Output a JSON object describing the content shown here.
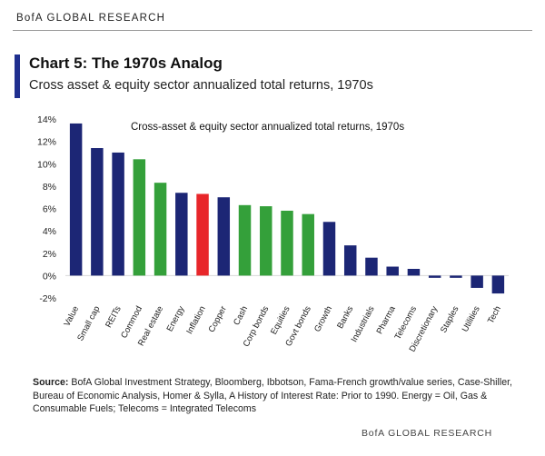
{
  "header": {
    "brand": "BofA GLOBAL RESEARCH"
  },
  "title": "Chart 5: The 1970s Analog",
  "subtitle": "Cross asset & equity sector annualized total returns, 1970s",
  "colors": {
    "navy": "#1c2675",
    "green": "#34a03a",
    "red": "#e8262a",
    "title_bar": "#1f2f8f"
  },
  "chart_data": {
    "type": "bar",
    "title": "Cross-asset & equity sector annualized total returns, 1970s",
    "xlabel": "",
    "ylabel": "",
    "ylim": [
      -2,
      14
    ],
    "yticks": [
      -2,
      0,
      2,
      4,
      6,
      8,
      10,
      12,
      14
    ],
    "ytick_labels": [
      "-2%",
      "0%",
      "2%",
      "4%",
      "6%",
      "8%",
      "10%",
      "12%",
      "14%"
    ],
    "grid": false,
    "categories": [
      "Value",
      "Small cap",
      "REITs",
      "Commod",
      "Real estate",
      "Energy",
      "Inflation",
      "Copper",
      "Cash",
      "Corp bonds",
      "Equities",
      "Govt bonds",
      "Growth",
      "Banks",
      "Industrials",
      "Pharma",
      "Telecoms",
      "Discretionary",
      "Staples",
      "Utilities",
      "Tech"
    ],
    "values": [
      13.6,
      11.4,
      11.0,
      10.4,
      8.3,
      7.4,
      7.3,
      7.0,
      6.3,
      6.2,
      5.8,
      5.5,
      4.8,
      2.7,
      1.6,
      0.8,
      0.6,
      -0.2,
      -0.2,
      -1.1,
      -1.6
    ],
    "bar_colors": [
      "navy",
      "navy",
      "navy",
      "green",
      "green",
      "navy",
      "red",
      "navy",
      "green",
      "green",
      "green",
      "green",
      "navy",
      "navy",
      "navy",
      "navy",
      "navy",
      "navy",
      "navy",
      "navy",
      "navy"
    ]
  },
  "source": {
    "label": "Source:",
    "text": "BofA Global Investment Strategy, Bloomberg, Ibbotson, Fama-French growth/value series, Case-Shiller, Bureau of Economic Analysis, Homer & Sylla, A History of Interest Rate: Prior to 1990. Energy = Oil, Gas & Consumable Fuels; Telecoms = Integrated Telecoms"
  },
  "footer": {
    "brand": "BofA GLOBAL RESEARCH"
  }
}
